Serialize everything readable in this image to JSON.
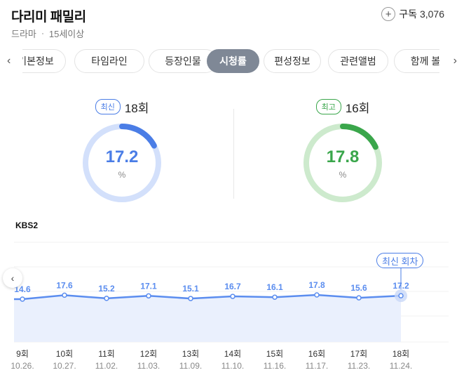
{
  "header": {
    "title": "다리미 패밀리",
    "genre": "드라마",
    "rating": "15세이상",
    "subscribe_label": "구독",
    "subscribe_count": "3,076",
    "plus_icon": "+"
  },
  "tabs": {
    "items": [
      {
        "label": "기본정보"
      },
      {
        "label": "타임라인"
      },
      {
        "label": "등장인물"
      },
      {
        "label": "시청률",
        "active": true
      },
      {
        "label": "편성정보"
      },
      {
        "label": "관련앨범"
      },
      {
        "label": "함께 볼"
      }
    ],
    "left_arrow": "‹",
    "right_arrow": "›"
  },
  "gauges": {
    "latest": {
      "badge": "최신",
      "episode": "18회",
      "value": "17.2",
      "unit": "%",
      "color": "#4a7de6",
      "track_color": "#d3e0fb",
      "fraction": 0.172
    },
    "best": {
      "badge": "최고",
      "episode": "16회",
      "value": "17.8",
      "unit": "%",
      "color": "#3aa64b",
      "track_color": "#cdeacd",
      "fraction": 0.178
    }
  },
  "chart": {
    "channel": "KBS2",
    "latest_tag": "최신 회차",
    "left_arrow": "‹"
  },
  "chart_data": {
    "type": "area",
    "x": [
      "9회",
      "10회",
      "11회",
      "12회",
      "13회",
      "14회",
      "15회",
      "16회",
      "17회",
      "18회"
    ],
    "dates": [
      "10.26.",
      "10.27.",
      "11.02.",
      "11.03.",
      "11.09.",
      "11.10.",
      "11.16.",
      "11.17.",
      "11.23.",
      "11.24."
    ],
    "values": [
      14.6,
      17.6,
      15.2,
      17.1,
      15.1,
      16.7,
      16.1,
      17.8,
      15.6,
      17.2
    ],
    "value_labels": [
      "14.6",
      "17.6",
      "15.2",
      "17.1",
      "15.1",
      "16.7",
      "16.1",
      "17.8",
      "15.6",
      "17.2"
    ],
    "line_color": "#5b8def",
    "fill_color": "#eaf0fd",
    "grid": true
  }
}
